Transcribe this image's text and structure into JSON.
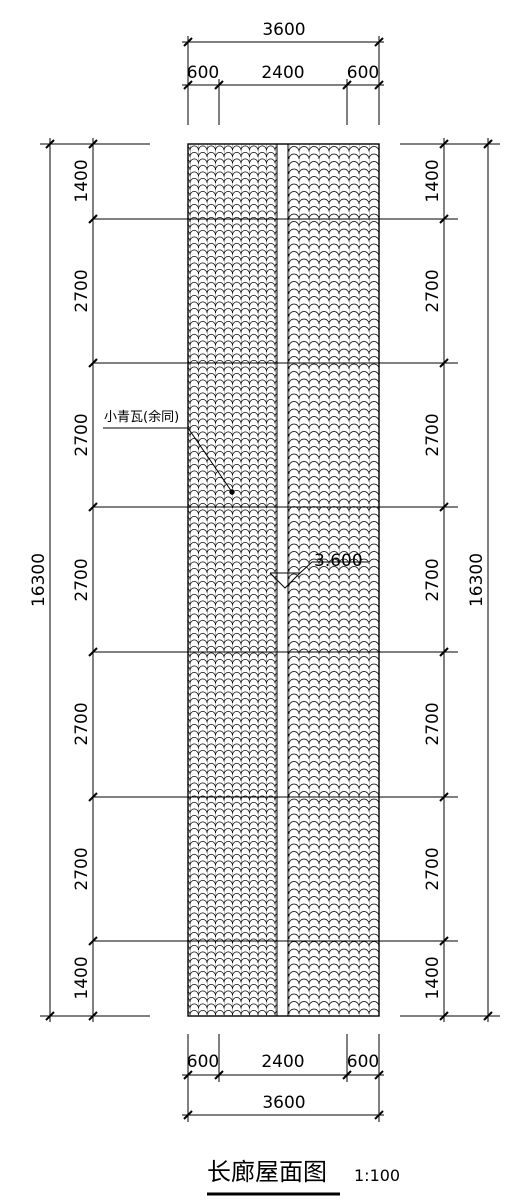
{
  "drawing": {
    "title": "长廊屋面图",
    "scale": "1:100",
    "material_note": "小青瓦(余同)",
    "ridge_elevation": "3.600",
    "top_dims": {
      "total": "3600",
      "left": "600",
      "mid": "2400",
      "right": "600"
    },
    "bottom_dims": {
      "total": "3600",
      "left": "600",
      "mid": "2400",
      "right": "600"
    },
    "left_dims": {
      "total": "16300",
      "segments": [
        "1400",
        "2700",
        "2700",
        "2700",
        "2700",
        "2700",
        "1400"
      ]
    },
    "right_dims": {
      "total": "16300",
      "segments": [
        "1400",
        "2700",
        "2700",
        "2700",
        "2700",
        "2700",
        "1400"
      ]
    }
  }
}
